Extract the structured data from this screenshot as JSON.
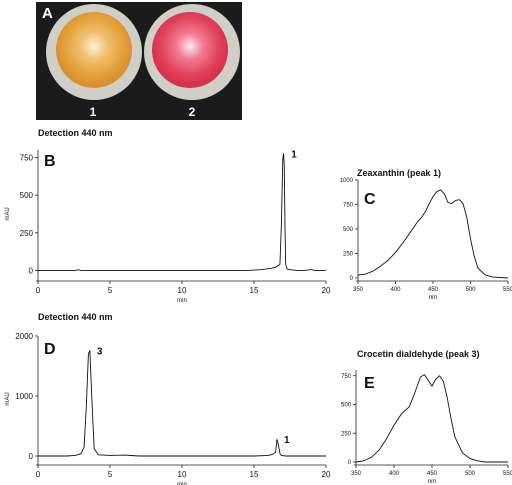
{
  "panel_a": {
    "letter": "A",
    "labels": [
      "1",
      "2"
    ],
    "colors": {
      "background": "#1b1b1b",
      "dish1_center": "#fff2d6",
      "dish1_ring": "#e4a23a",
      "dish2_center": "#ffe7ef",
      "dish2_ring": "#e2445c",
      "dish_rim": "#cfcfc7"
    }
  },
  "chart_data": [
    {
      "id": "B",
      "type": "line",
      "letter": "B",
      "title": "Detection 440 nm",
      "xlabel": "min",
      "ylabel": "mAU",
      "xlim": [
        0,
        20
      ],
      "ylim": [
        -50,
        800
      ],
      "xticks": [
        "0",
        "5",
        "10",
        "15",
        "20"
      ],
      "yticks": [
        "0",
        "250",
        "500",
        "750"
      ],
      "x": [
        0,
        2,
        2.6,
        2.8,
        3,
        5,
        10,
        14.5,
        15.5,
        16.2,
        16.5,
        16.8,
        16.9,
        17.0,
        17.05,
        17.1,
        17.15,
        17.2,
        17.3,
        17.5,
        18,
        18.5,
        19,
        19.2,
        19.4,
        20
      ],
      "y": [
        0,
        0,
        0,
        5,
        0,
        0,
        0,
        0,
        5,
        14,
        22,
        40,
        300,
        740,
        778,
        700,
        300,
        40,
        10,
        5,
        0,
        0,
        6,
        0,
        0,
        0
      ],
      "peak_labels": [
        {
          "x": 17.1,
          "y": 778,
          "text": "1"
        }
      ]
    },
    {
      "id": "C",
      "type": "line",
      "letter": "C",
      "title": "Zeaxanthin (peak 1)",
      "xlabel": "nm",
      "ylabel": "",
      "xlim": [
        350,
        550
      ],
      "ylim": [
        0,
        1000
      ],
      "xticks": [
        "350",
        "400",
        "450",
        "500",
        "550"
      ],
      "yticks": [
        "0",
        "250",
        "500",
        "750",
        "1000"
      ],
      "x": [
        350,
        360,
        370,
        380,
        390,
        400,
        410,
        420,
        430,
        435,
        440,
        445,
        450,
        455,
        460,
        465,
        470,
        475,
        480,
        485,
        490,
        495,
        500,
        505,
        510,
        520,
        530,
        540,
        550
      ],
      "y": [
        30,
        40,
        70,
        120,
        180,
        260,
        360,
        470,
        580,
        620,
        680,
        760,
        830,
        880,
        900,
        860,
        770,
        760,
        790,
        800,
        760,
        620,
        400,
        220,
        100,
        30,
        10,
        5,
        0
      ]
    },
    {
      "id": "D",
      "type": "line",
      "letter": "D",
      "title": "Detection 440 nm",
      "xlabel": "min",
      "ylabel": "mAU",
      "xlim": [
        0,
        20
      ],
      "ylim": [
        -100,
        2000
      ],
      "xticks": [
        "0",
        "5",
        "10",
        "15",
        "20"
      ],
      "yticks": [
        "0",
        "1000",
        "2000"
      ],
      "x": [
        0,
        2,
        2.6,
        3.0,
        3.2,
        3.35,
        3.5,
        3.6,
        3.75,
        3.9,
        4.2,
        5,
        6,
        7,
        10,
        15,
        16,
        16.3,
        16.5,
        16.6,
        16.7,
        16.8,
        16.9,
        17.2,
        17.5,
        18,
        20
      ],
      "y": [
        0,
        0,
        10,
        40,
        150,
        800,
        1700,
        1760,
        900,
        120,
        20,
        10,
        15,
        0,
        0,
        0,
        10,
        30,
        60,
        280,
        180,
        40,
        10,
        0,
        0,
        0,
        0
      ],
      "peak_labels": [
        {
          "x": 3.6,
          "y": 1760,
          "text": "3"
        },
        {
          "x": 16.6,
          "y": 280,
          "text": "1"
        }
      ]
    },
    {
      "id": "E",
      "type": "line",
      "letter": "E",
      "title": "Crocetin dialdehyde (peak 3)",
      "xlabel": "nm",
      "ylabel": "",
      "xlim": [
        350,
        550
      ],
      "ylim": [
        0,
        800
      ],
      "xticks": [
        "350",
        "400",
        "450",
        "500",
        "550"
      ],
      "yticks": [
        "0",
        "250",
        "500",
        "750"
      ],
      "x": [
        350,
        360,
        370,
        380,
        390,
        400,
        410,
        420,
        425,
        430,
        435,
        440,
        445,
        450,
        455,
        460,
        465,
        470,
        475,
        480,
        490,
        500,
        510,
        520,
        550
      ],
      "y": [
        0,
        10,
        40,
        100,
        200,
        320,
        420,
        480,
        560,
        650,
        740,
        760,
        710,
        660,
        720,
        750,
        700,
        560,
        380,
        220,
        80,
        30,
        10,
        0,
        0
      ]
    }
  ]
}
